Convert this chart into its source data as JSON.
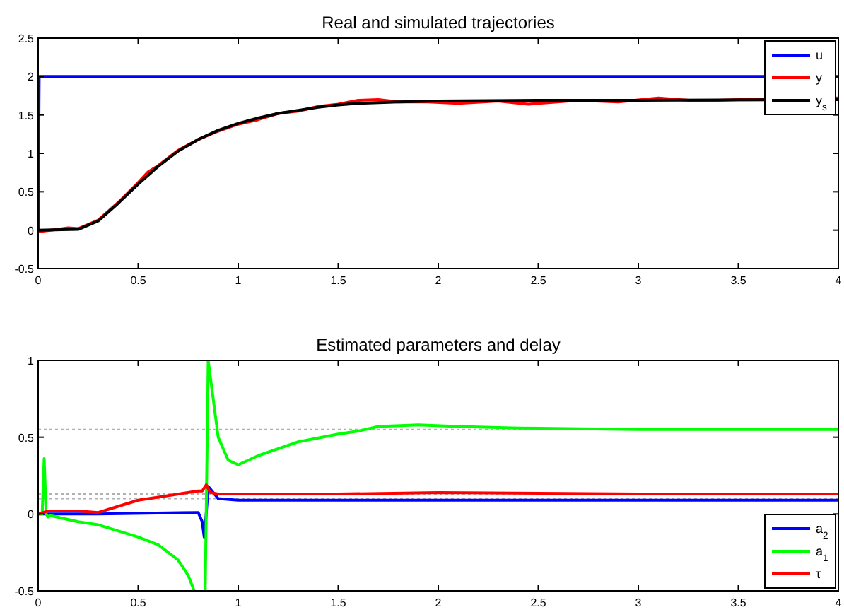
{
  "chart_data": [
    {
      "type": "line",
      "title": "Real and simulated trajectories",
      "xlim": [
        0,
        4
      ],
      "xticks": [
        0,
        0.5,
        1,
        1.5,
        2,
        2.5,
        3,
        3.5,
        4
      ],
      "ylim": [
        -0.5,
        2.5
      ],
      "yticks": [
        -0.5,
        0,
        0.5,
        1,
        1.5,
        2,
        2.5
      ],
      "legend": "top right",
      "grid": false,
      "series": [
        {
          "name": "u",
          "color": "#0000ff",
          "x": [
            0,
            0.005,
            4
          ],
          "values": [
            0,
            2,
            2
          ]
        },
        {
          "name": "y",
          "color": "#ff0000",
          "x": [
            0,
            0.1,
            0.15,
            0.2,
            0.3,
            0.4,
            0.5,
            0.55,
            0.6,
            0.7,
            0.8,
            0.9,
            1.0,
            1.1,
            1.2,
            1.3,
            1.4,
            1.5,
            1.6,
            1.7,
            1.8,
            1.95,
            2.1,
            2.3,
            2.45,
            2.7,
            2.9,
            3.1,
            3.3,
            3.5,
            4
          ],
          "values": [
            -0.02,
            0.01,
            0.03,
            0.02,
            0.13,
            0.36,
            0.62,
            0.76,
            0.84,
            1.04,
            1.18,
            1.29,
            1.38,
            1.44,
            1.52,
            1.55,
            1.61,
            1.64,
            1.69,
            1.7,
            1.67,
            1.67,
            1.65,
            1.68,
            1.64,
            1.69,
            1.67,
            1.72,
            1.68,
            1.7,
            1.72
          ]
        },
        {
          "name": "y$_{s}$",
          "color": "#000000",
          "x": [
            0,
            0.2,
            0.3,
            0.4,
            0.5,
            0.6,
            0.7,
            0.8,
            0.9,
            1.0,
            1.1,
            1.2,
            1.3,
            1.4,
            1.5,
            1.6,
            1.8,
            2.0,
            2.5,
            3,
            4
          ],
          "values": [
            0,
            0.01,
            0.12,
            0.35,
            0.6,
            0.83,
            1.03,
            1.18,
            1.3,
            1.39,
            1.46,
            1.52,
            1.56,
            1.6,
            1.63,
            1.65,
            1.67,
            1.68,
            1.69,
            1.69,
            1.7
          ]
        }
      ]
    },
    {
      "type": "line",
      "title": "Estimated parameters and delay",
      "xlim": [
        0,
        4
      ],
      "xticks": [
        0,
        0.5,
        1,
        1.5,
        2,
        2.5,
        3,
        3.5,
        4
      ],
      "ylim": [
        -0.5,
        1
      ],
      "yticks": [
        -0.5,
        0,
        0.5,
        1
      ],
      "legend": "bottom right",
      "grid": false,
      "ref_lines": [
        {
          "axis": "y",
          "value": 0.55,
          "color": "#b0b0b0",
          "line_style": "dotted"
        },
        {
          "axis": "y",
          "value": 0.13,
          "color": "#b0b0b0",
          "line_style": "dotted"
        },
        {
          "axis": "y",
          "value": 0.1,
          "color": "#b0b0b0",
          "line_style": "dotted"
        }
      ],
      "series": [
        {
          "name": "a$_{2}$",
          "color": "#0000ff",
          "x": [
            0,
            0.3,
            0.8,
            0.82,
            0.83,
            0.84,
            0.85,
            0.9,
            1.0,
            1.5,
            2,
            4
          ],
          "values": [
            0,
            0,
            0.01,
            -0.05,
            -0.15,
            0.0,
            0.18,
            0.1,
            0.09,
            0.09,
            0.09,
            0.09
          ]
        },
        {
          "name": "a$_{1}$",
          "color": "#00ff00",
          "x": [
            0,
            0.02,
            0.03,
            0.04,
            0.05,
            0.06,
            0.2,
            0.3,
            0.5,
            0.6,
            0.7,
            0.75,
            0.78,
            0.8,
            0.835,
            0.85,
            0.86,
            0.9,
            0.95,
            1.0,
            1.1,
            1.3,
            1.5,
            1.6,
            1.7,
            1.9,
            2.1,
            2.4,
            3,
            4
          ],
          "values": [
            0,
            0,
            0.36,
            0,
            -0.02,
            -0.01,
            -0.05,
            -0.07,
            -0.15,
            -0.2,
            -0.3,
            -0.4,
            -0.5,
            null,
            -0.5,
            1.0,
            0.9,
            0.5,
            0.35,
            0.32,
            0.38,
            0.47,
            0.52,
            0.54,
            0.57,
            0.58,
            0.57,
            0.56,
            0.55,
            0.55
          ]
        },
        {
          "name": "τ",
          "color": "#ff0000",
          "x": [
            0,
            0.05,
            0.2,
            0.3,
            0.4,
            0.5,
            0.6,
            0.8,
            0.82,
            0.84,
            0.86,
            0.9,
            1.5,
            2,
            3,
            4
          ],
          "values": [
            0,
            0.02,
            0.02,
            0.01,
            0.05,
            0.09,
            0.11,
            0.15,
            0.15,
            0.19,
            0.14,
            0.13,
            0.13,
            0.14,
            0.13,
            0.13
          ]
        }
      ]
    }
  ]
}
